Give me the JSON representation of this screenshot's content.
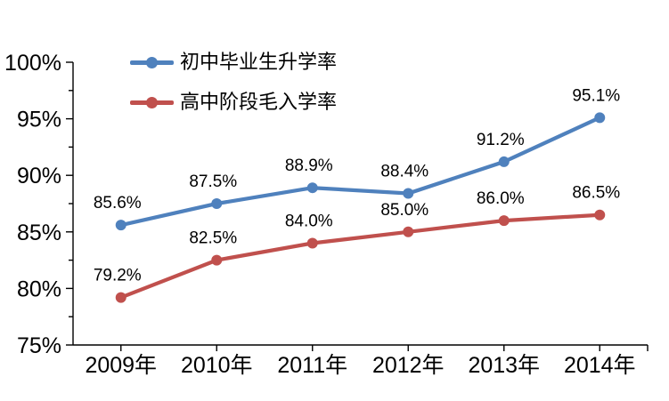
{
  "chart_data": {
    "type": "line",
    "title": "",
    "categories": [
      "2009年",
      "2010年",
      "2011年",
      "2012年",
      "2013年",
      "2014年"
    ],
    "series": [
      {
        "name": "初中毕业生升学率",
        "values": [
          85.6,
          87.5,
          88.9,
          88.4,
          91.2,
          95.1
        ],
        "labels": [
          "85.6%",
          "87.5%",
          "88.9%",
          "88.4%",
          "91.2%",
          "95.1%"
        ],
        "color": "#4F81BD",
        "marker": "circle"
      },
      {
        "name": "高中阶段毛入学率",
        "values": [
          79.2,
          82.5,
          84.0,
          85.0,
          86.0,
          86.5
        ],
        "labels": [
          "79.2%",
          "82.5%",
          "84.0%",
          "85.0%",
          "86.0%",
          "86.5%"
        ],
        "color": "#C0504D",
        "marker": "circle"
      }
    ],
    "xlabel": "",
    "ylabel": "",
    "ylim": [
      75,
      100
    ],
    "yticks": [
      {
        "value": 75,
        "label": "75%"
      },
      {
        "value": 80,
        "label": "80%"
      },
      {
        "value": 85,
        "label": "85%"
      },
      {
        "value": 90,
        "label": "90%"
      },
      {
        "value": 95,
        "label": "95%"
      },
      {
        "value": 100,
        "label": "100%"
      }
    ],
    "yminor": [
      77.5,
      82.5,
      87.5,
      92.5,
      97.5
    ],
    "grid": false,
    "data_labels": true,
    "legend_position": "top-left-inside"
  },
  "colors": {
    "background": "#FFFFFF",
    "axis": "#000000",
    "text": "#000000",
    "series1": "#4F81BD",
    "series2": "#C0504D"
  }
}
